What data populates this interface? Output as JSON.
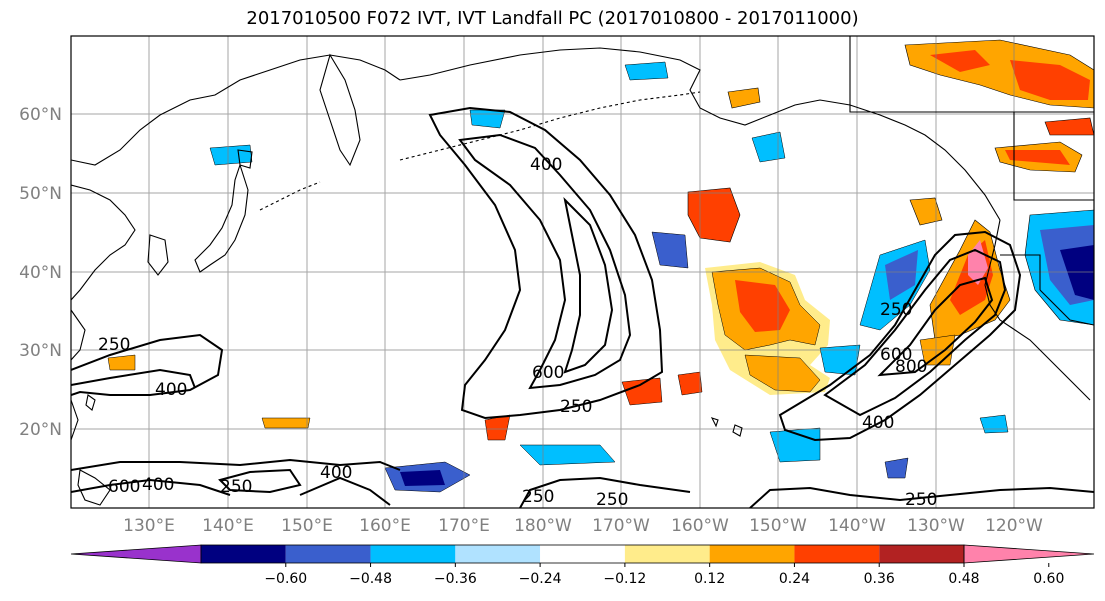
{
  "title": "2017010500 F072 IVT, IVT Landfall PC (2017010800 - 2017011000)",
  "lat_labels": [
    "60°N",
    "50°N",
    "40°N",
    "30°N",
    "20°N"
  ],
  "lon_labels": [
    "130°E",
    "140°E",
    "150°E",
    "160°E",
    "170°E",
    "180°W",
    "170°W",
    "160°W",
    "150°W",
    "140°W",
    "130°W",
    "120°W"
  ],
  "colorbar": {
    "colors": [
      "#9932cc",
      "#000080",
      "#3a5fcd",
      "#00bfff",
      "#b0e2ff",
      "#ffffff",
      "#ffec8b",
      "#ffa500",
      "#ff4000",
      "#b22222",
      "#ff82ab"
    ],
    "tick_labels": [
      "−0.60",
      "−0.48",
      "−0.36",
      "−0.24",
      "−0.12",
      "0.12",
      "0.24",
      "0.36",
      "0.48",
      "0.60"
    ]
  },
  "contour_labels": [
    "250",
    "400",
    "400",
    "600",
    "250",
    "250",
    "600",
    "800",
    "400",
    "250",
    "600",
    "400",
    "250",
    "250",
    "400",
    "250"
  ],
  "colors": {
    "grid": "#808080",
    "coast": "#000000",
    "contour": "#000000"
  }
}
